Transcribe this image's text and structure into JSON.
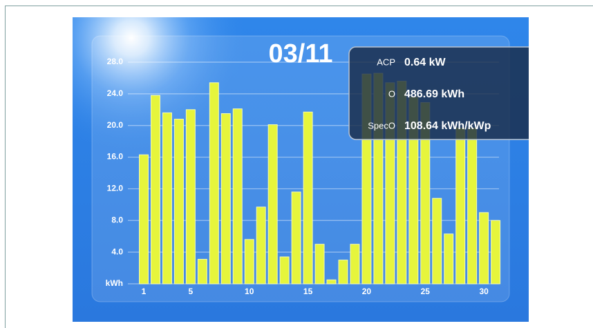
{
  "chart_data": {
    "type": "bar",
    "title": "03/11",
    "categories": [
      "1",
      null,
      null,
      null,
      "5",
      null,
      null,
      null,
      null,
      "10",
      null,
      null,
      null,
      null,
      "15",
      null,
      null,
      null,
      null,
      "20",
      null,
      null,
      null,
      null,
      "25",
      null,
      null,
      null,
      null,
      "30",
      null
    ],
    "values": [
      16.3,
      23.8,
      21.6,
      20.8,
      22.0,
      3.1,
      25.4,
      21.5,
      22.1,
      5.6,
      9.7,
      20.1,
      3.4,
      11.6,
      21.7,
      5.0,
      0.5,
      3.0,
      5.0,
      26.5,
      26.6,
      25.4,
      25.6,
      23.6,
      22.9,
      10.8,
      6.3,
      19.7,
      19.7,
      9.0,
      8.0
    ],
    "color": "#e6f53c",
    "ylim": [
      0,
      28
    ],
    "yticks": [
      {
        "value": 0,
        "label": "kWh"
      },
      {
        "value": 4,
        "label": "4.0"
      },
      {
        "value": 8,
        "label": "8.0"
      },
      {
        "value": 12,
        "label": "12.0"
      },
      {
        "value": 16,
        "label": "16.0"
      },
      {
        "value": 20,
        "label": "20.0"
      },
      {
        "value": 24,
        "label": "24.0"
      },
      {
        "value": 28,
        "label": "28.0"
      }
    ],
    "grid": true
  },
  "info": {
    "rows": [
      {
        "label": "ACP",
        "value": "0.64 kW"
      },
      {
        "label": "O",
        "value": "486.69 kWh"
      },
      {
        "label": "SpecO",
        "value": "108.64 kWh/kWp"
      }
    ]
  }
}
